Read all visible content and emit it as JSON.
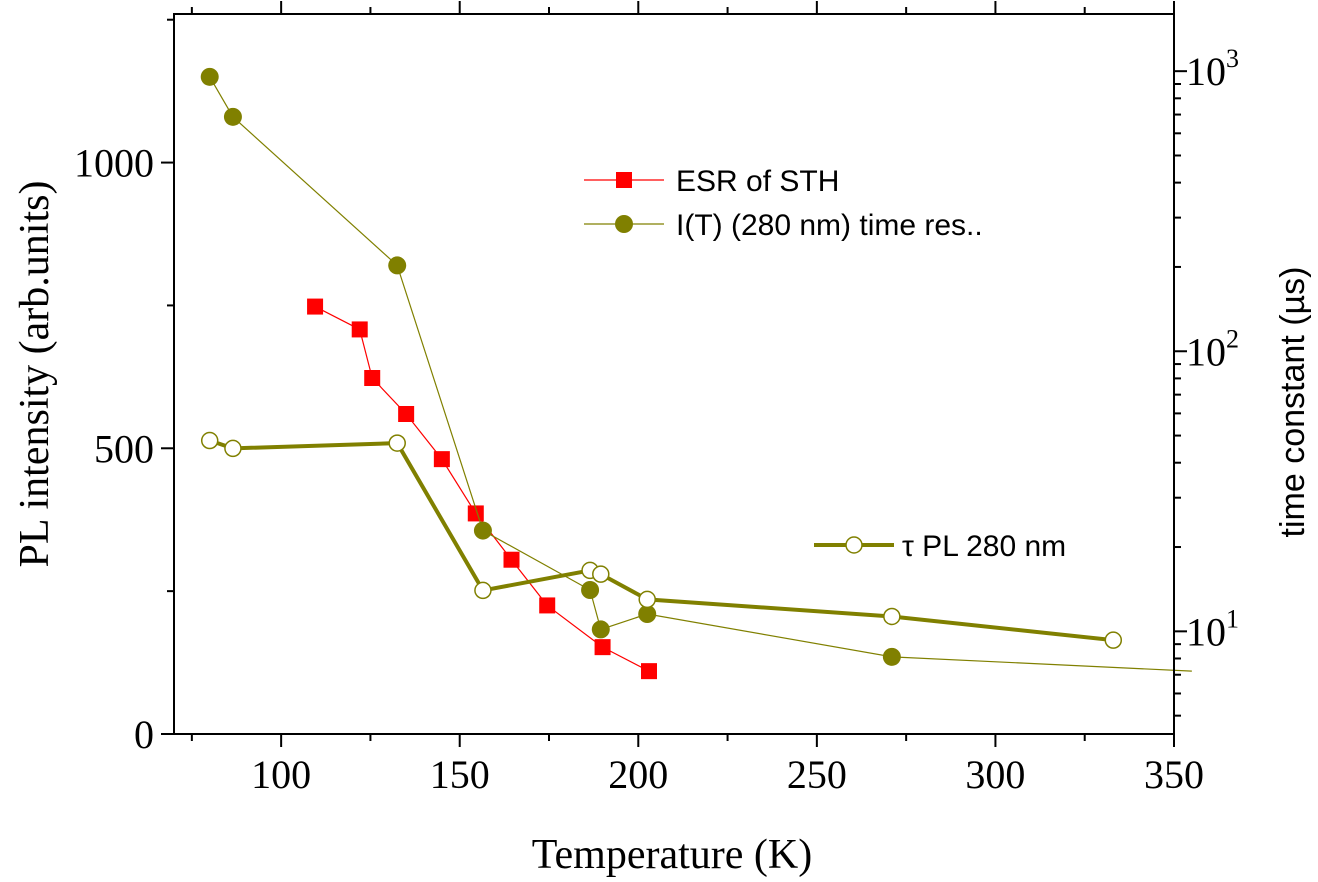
{
  "chart_data": {
    "type": "scatter",
    "xlabel": "Temperature (K)",
    "ylabel_left": "PL intensity (arb.units)",
    "ylabel_right": "time constant (µs)",
    "xlim": [
      70,
      350
    ],
    "ylim_left": [
      0,
      1260
    ],
    "ylim_right_log": [
      4.3,
      1600
    ],
    "x_ticks": [
      100,
      150,
      200,
      250,
      300,
      350
    ],
    "y_left_ticks": [
      0,
      500,
      1000
    ],
    "y_right_ticks": [
      {
        "value": 10,
        "base": "10",
        "exp": "1"
      },
      {
        "value": 100,
        "base": "10",
        "exp": "2"
      },
      {
        "value": 1000,
        "base": "10",
        "exp": "3"
      }
    ],
    "grid": false,
    "legend_entries": [
      {
        "label": "ESR of STH",
        "series": 0
      },
      {
        "label": "I(T) (280 nm) time res..",
        "series": 1
      },
      {
        "label": "τ PL 280 nm",
        "series": 2
      }
    ],
    "series": [
      {
        "name": "ESR of STH",
        "axis": "left",
        "color": "#ff0000",
        "marker": "square",
        "points": [
          [
            109.5,
            748
          ],
          [
            122,
            708
          ],
          [
            125.5,
            623
          ],
          [
            135,
            560
          ],
          [
            145,
            481
          ],
          [
            154.5,
            386
          ],
          [
            164.5,
            305
          ],
          [
            174.5,
            225
          ],
          [
            190,
            152
          ],
          [
            203,
            110
          ]
        ]
      },
      {
        "name": "I(T) (280 nm) time res..",
        "axis": "left",
        "color": "#808000",
        "marker": "circle-filled",
        "points": [
          [
            80,
            1150
          ],
          [
            86.5,
            1080
          ],
          [
            132.5,
            820
          ],
          [
            156.5,
            356
          ],
          [
            186.5,
            252
          ],
          [
            189.5,
            183
          ],
          [
            202.5,
            210
          ],
          [
            271,
            135
          ],
          [
            355,
            110
          ]
        ]
      },
      {
        "name": "τ PL 280 nm",
        "axis": "right",
        "color": "#808000",
        "marker": "circle-open",
        "points": [
          [
            80,
            48
          ],
          [
            86.5,
            45
          ],
          [
            132.5,
            47
          ],
          [
            156.5,
            14
          ],
          [
            186.5,
            16.5
          ],
          [
            189.5,
            16
          ],
          [
            202.5,
            13
          ],
          [
            271,
            11.3
          ],
          [
            333,
            9.3
          ]
        ]
      }
    ]
  }
}
